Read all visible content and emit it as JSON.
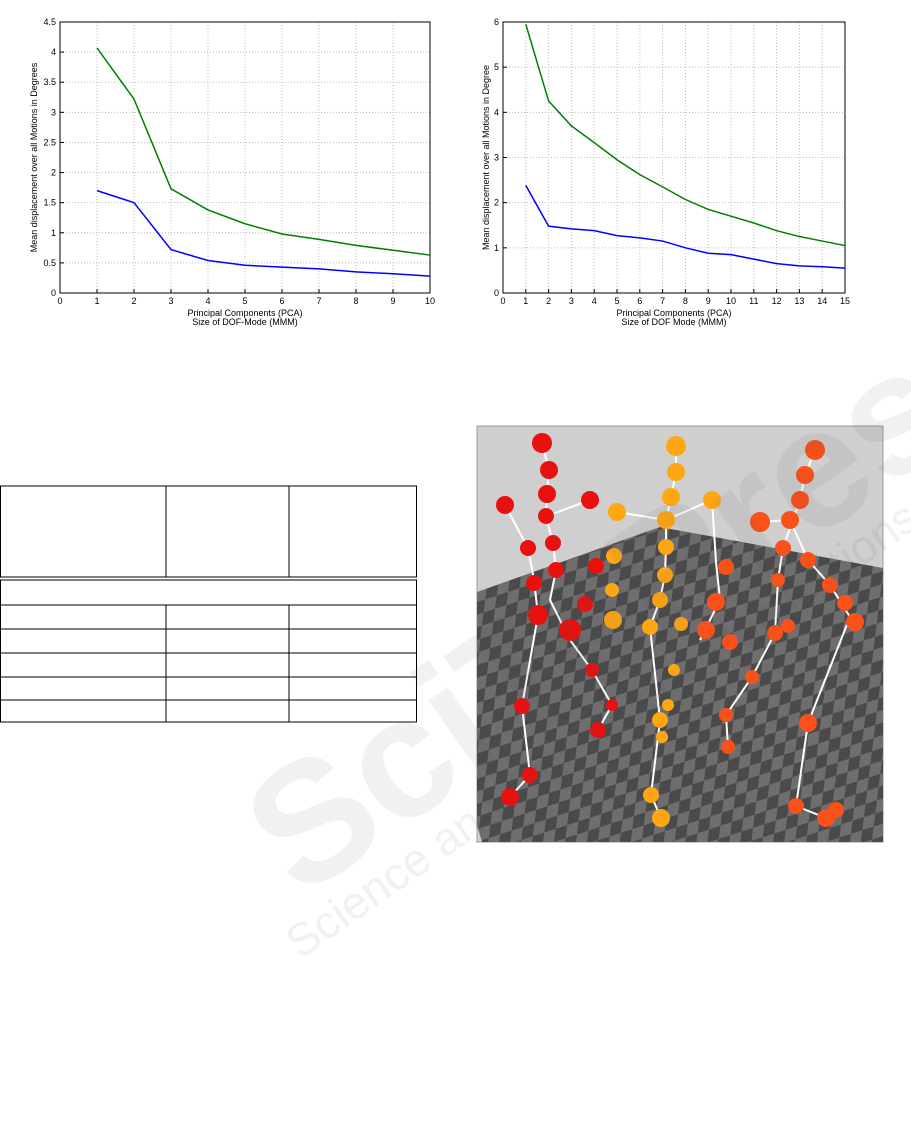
{
  "chart_data": [
    {
      "type": "line",
      "ylabel": "Mean displacement over all Motions in Degrees",
      "xlabel": [
        "Principal Components (PCA)",
        "Size of DOF-Mode (MMM)"
      ],
      "x": [
        1,
        2,
        3,
        4,
        5,
        6,
        7,
        8,
        9,
        10
      ],
      "series": [
        {
          "color": "#007f00",
          "values": [
            4.07,
            3.22,
            1.73,
            1.38,
            1.15,
            0.98,
            0.89,
            0.79,
            0.71,
            0.63
          ]
        },
        {
          "color": "#0000ff",
          "values": [
            1.7,
            1.5,
            0.72,
            0.54,
            0.46,
            0.43,
            0.4,
            0.35,
            0.32,
            0.28
          ]
        }
      ],
      "xlim": [
        0,
        10
      ],
      "xticks": [
        0,
        1,
        2,
        3,
        4,
        5,
        6,
        7,
        8,
        9,
        10
      ],
      "ylim": [
        0,
        4.5
      ],
      "yticks": [
        0,
        0.5,
        1,
        1.5,
        2,
        2.5,
        3,
        3.5,
        4,
        4.5
      ],
      "grid": true
    },
    {
      "type": "line",
      "ylabel": "Mean displacement over all Motions in Degree",
      "xlabel": [
        "Principal Components (PCA)",
        "Size of DOF Mode (MMM)"
      ],
      "x": [
        1,
        2,
        3,
        4,
        5,
        6,
        7,
        8,
        9,
        10,
        11,
        12,
        13,
        14,
        15
      ],
      "series": [
        {
          "color": "#007f00",
          "values": [
            5.95,
            4.25,
            3.7,
            3.33,
            2.95,
            2.62,
            2.35,
            2.07,
            1.85,
            1.7,
            1.55,
            1.38,
            1.25,
            1.15,
            1.05
          ]
        },
        {
          "color": "#0000ff",
          "values": [
            2.38,
            1.48,
            1.42,
            1.38,
            1.27,
            1.22,
            1.15,
            1.0,
            0.88,
            0.85,
            0.75,
            0.65,
            0.6,
            0.58,
            0.55
          ]
        }
      ],
      "xlim": [
        0,
        15
      ],
      "xticks": [
        0,
        1,
        2,
        3,
        4,
        5,
        6,
        7,
        8,
        9,
        10,
        11,
        12,
        13,
        14,
        15
      ],
      "ylim": [
        0,
        6
      ],
      "yticks": [
        0,
        1,
        2,
        3,
        4,
        5,
        6
      ],
      "grid": true
    }
  ],
  "watermark": {
    "brand": "SciTePress",
    "tagline": "Science and Technology Publications"
  }
}
